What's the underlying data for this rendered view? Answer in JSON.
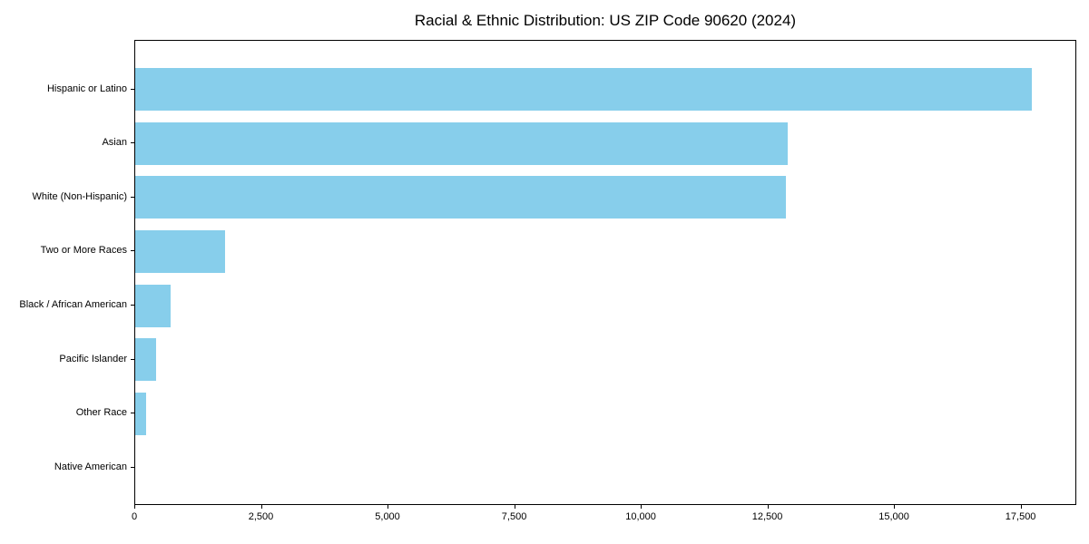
{
  "chart_data": {
    "type": "bar",
    "orientation": "horizontal",
    "title": "Racial & Ethnic Distribution: US ZIP Code 90620 (2024)",
    "categories": [
      "Hispanic or Latino",
      "Asian",
      "White (Non-Hispanic)",
      "Two or More Races",
      "Black / African American",
      "Pacific Islander",
      "Other Race",
      "Native American"
    ],
    "values": [
      17700,
      12890,
      12840,
      1780,
      700,
      410,
      220,
      0
    ],
    "xlabel": "",
    "ylabel": "",
    "xlim": [
      0,
      18600
    ],
    "x_ticks": [
      0,
      2500,
      5000,
      7500,
      10000,
      12500,
      15000,
      17500
    ],
    "x_tick_labels": [
      "0",
      "2,500",
      "5,000",
      "7,500",
      "10,000",
      "12,500",
      "15,000",
      "17,500"
    ],
    "grid": false,
    "legend": false,
    "bar_color": "#87CEEB",
    "axis_color": "#000000",
    "text_color": "#000000",
    "background_color": "#FFFFFF"
  }
}
